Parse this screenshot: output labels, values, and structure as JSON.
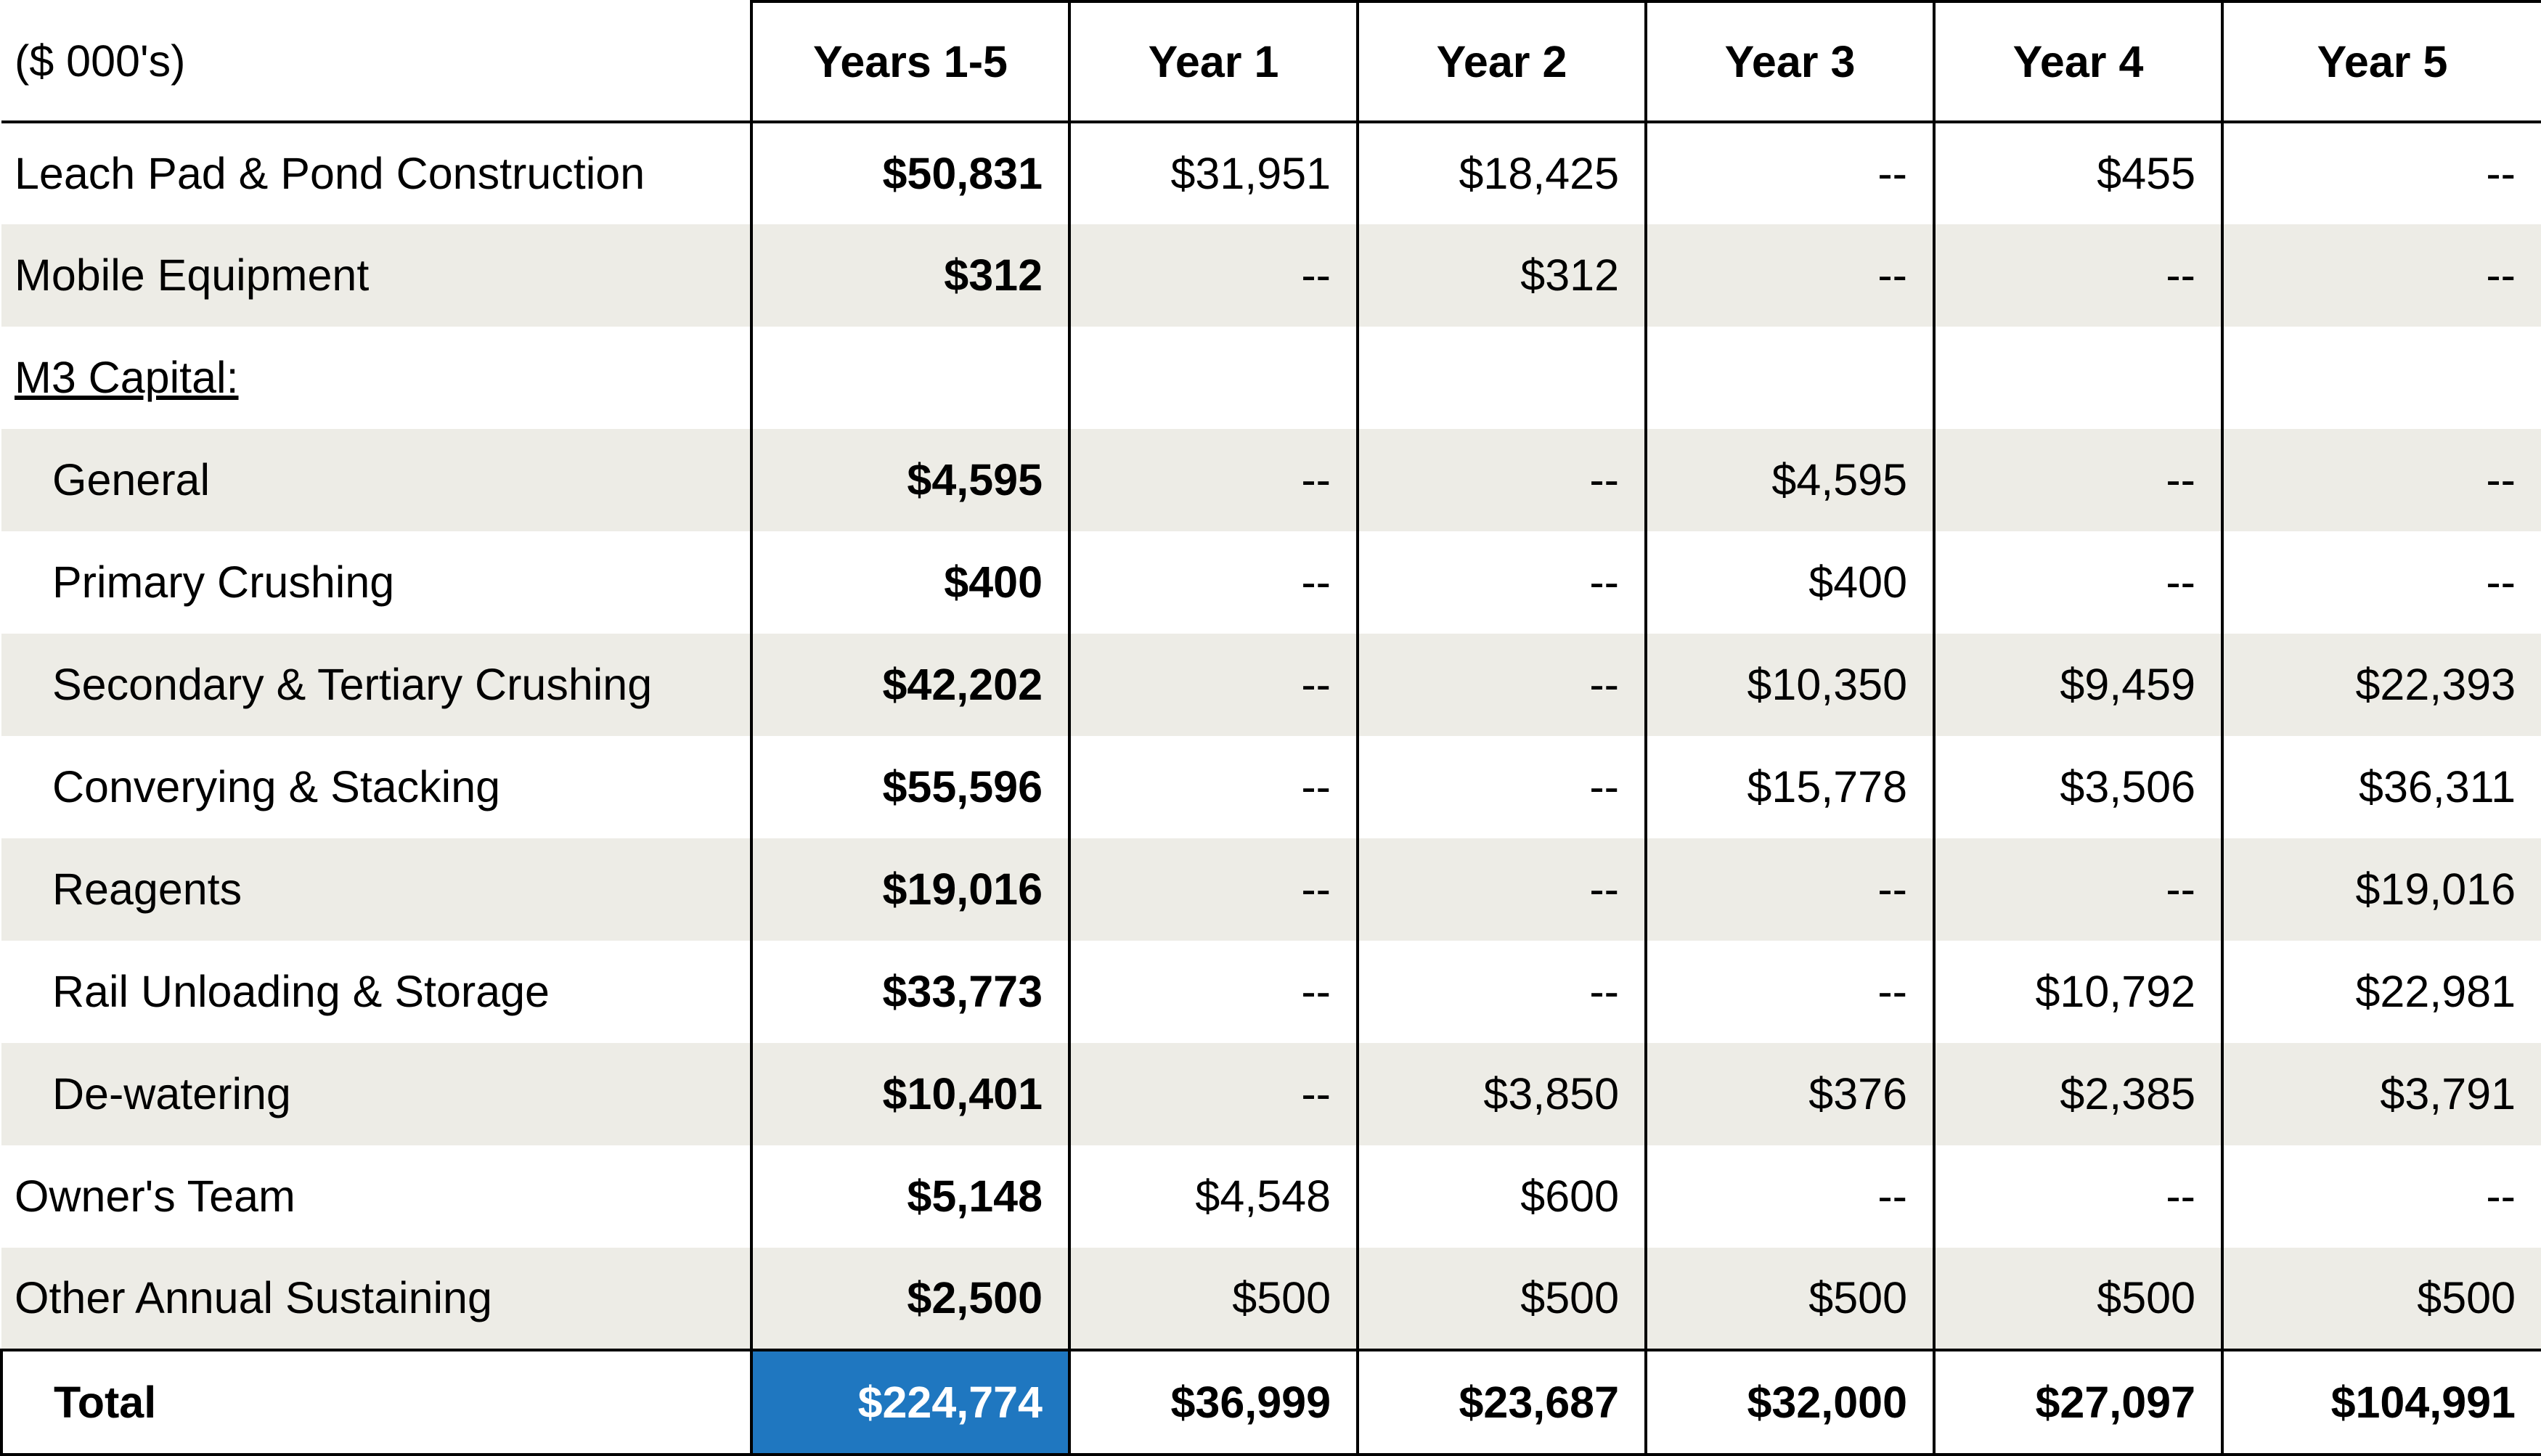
{
  "table": {
    "unit_label": "($ 000's)",
    "headers": [
      "Years 1-5",
      "Year 1",
      "Year 2",
      "Year 3",
      "Year 4",
      "Year 5"
    ],
    "rows": [
      {
        "label": "Leach Pad & Pond Construction",
        "total": "$50,831",
        "years": [
          "$31,951",
          "$18,425",
          "--",
          "$455",
          "--"
        ]
      },
      {
        "label": "Mobile Equipment",
        "total": "$312",
        "years": [
          "--",
          "$312",
          "--",
          "--",
          "--"
        ]
      },
      {
        "label": "M3 Capital:",
        "total": "",
        "years": [
          "",
          "",
          "",
          "",
          ""
        ]
      },
      {
        "label": "General",
        "total": "$4,595",
        "years": [
          "--",
          "--",
          "$4,595",
          "--",
          "--"
        ]
      },
      {
        "label": "Primary Crushing",
        "total": "$400",
        "years": [
          "--",
          "--",
          "$400",
          "--",
          "--"
        ]
      },
      {
        "label": "Secondary & Tertiary Crushing",
        "total": "$42,202",
        "years": [
          "--",
          "--",
          "$10,350",
          "$9,459",
          "$22,393"
        ]
      },
      {
        "label": "Converying & Stacking",
        "total": "$55,596",
        "years": [
          "--",
          "--",
          "$15,778",
          "$3,506",
          "$36,311"
        ]
      },
      {
        "label": "Reagents",
        "total": "$19,016",
        "years": [
          "--",
          "--",
          "--",
          "--",
          "$19,016"
        ]
      },
      {
        "label": "Rail Unloading & Storage",
        "total": "$33,773",
        "years": [
          "--",
          "--",
          "--",
          "$10,792",
          "$22,981"
        ]
      },
      {
        "label": "De-watering",
        "total": "$10,401",
        "years": [
          "--",
          "$3,850",
          "$376",
          "$2,385",
          "$3,791"
        ]
      },
      {
        "label": "Owner's Team",
        "total": "$5,148",
        "years": [
          "$4,548",
          "$600",
          "--",
          "--",
          "--"
        ]
      },
      {
        "label": "Other Annual Sustaining",
        "total": "$2,500",
        "years": [
          "$500",
          "$500",
          "$500",
          "$500",
          "$500"
        ]
      }
    ],
    "footer": {
      "label": "Total",
      "total": "$224,774",
      "years": [
        "$36,999",
        "$23,687",
        "$32,000",
        "$27,097",
        "$104,991"
      ]
    }
  },
  "colors": {
    "shaded_row": "#edece6",
    "grand_total_fill": "#1f77c0",
    "grand_total_text": "#ffffff"
  }
}
